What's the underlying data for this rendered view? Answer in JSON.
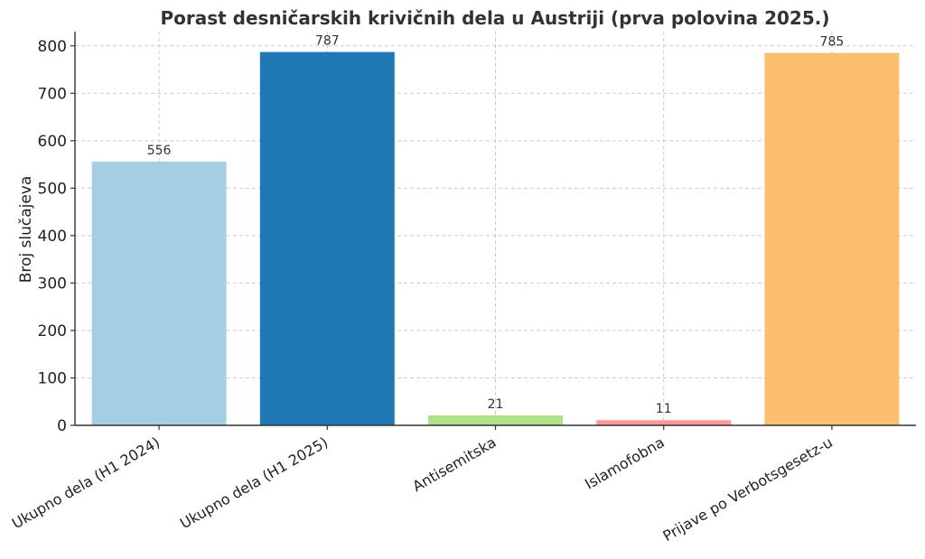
{
  "chart_data": {
    "type": "bar",
    "title": "Porast desničarskih krivičnih dela u Austriji (prva polovina 2025.)",
    "xlabel": "",
    "ylabel": "Broj slučajeva",
    "categories": [
      "Ukupno dela (H1 2024)",
      "Ukupno dela (H1 2025)",
      "Antisemitska",
      "Islamofobna",
      "Prijave po Verbotsgesetz-u"
    ],
    "values": [
      556,
      787,
      21,
      11,
      785
    ],
    "colors": [
      "#a6cee3",
      "#1f78b4",
      "#b2df8a",
      "#fb9a99",
      "#fdbf6f"
    ],
    "ylim": [
      0,
      830
    ],
    "yticks": [
      0,
      100,
      200,
      300,
      400,
      500,
      600,
      700,
      800
    ],
    "grid": true,
    "legend": "none"
  }
}
